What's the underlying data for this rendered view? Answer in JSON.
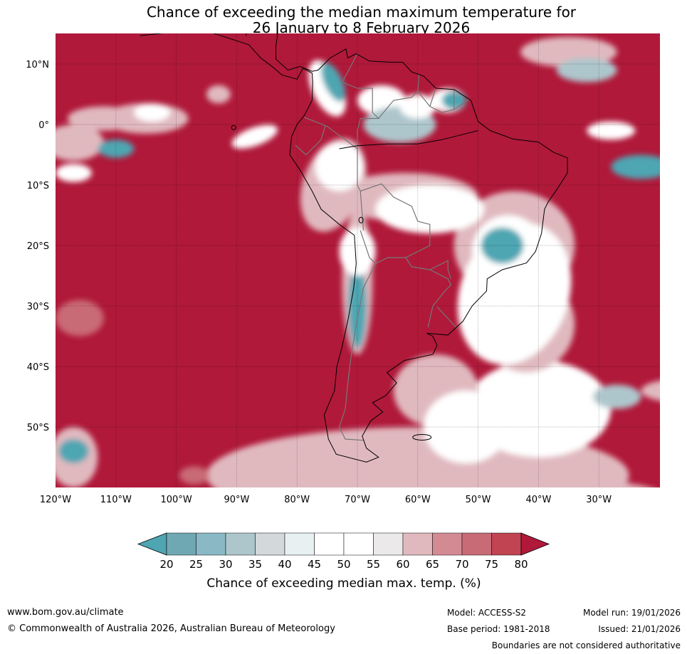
{
  "title_line1": "Chance of exceeding the median maximum temperature for",
  "title_line2": "26 January to 8 February 2026",
  "lat_labels": [
    {
      "text": "10°N",
      "lat": 10
    },
    {
      "text": "0°",
      "lat": 0
    },
    {
      "text": "10°S",
      "lat": -10
    },
    {
      "text": "20°S",
      "lat": -20
    },
    {
      "text": "30°S",
      "lat": -30
    },
    {
      "text": "40°S",
      "lat": -40
    },
    {
      "text": "50°S",
      "lat": -50
    }
  ],
  "lon_labels": [
    {
      "text": "120°W",
      "lon": -120
    },
    {
      "text": "110°W",
      "lon": -110
    },
    {
      "text": "100°W",
      "lon": -100
    },
    {
      "text": "90°W",
      "lon": -90
    },
    {
      "text": "80°W",
      "lon": -80
    },
    {
      "text": "70°W",
      "lon": -70
    },
    {
      "text": "60°W",
      "lon": -60
    },
    {
      "text": "50°W",
      "lon": -50
    },
    {
      "text": "40°W",
      "lon": -40
    },
    {
      "text": "30°W",
      "lon": -30
    }
  ],
  "colorbar": {
    "ticks": [
      "20",
      "25",
      "30",
      "35",
      "40",
      "45",
      "50",
      "55",
      "60",
      "65",
      "70",
      "75",
      "80"
    ],
    "colors": [
      "#6fa8b3",
      "#8ab9c5",
      "#adc6cc",
      "#d3d9db",
      "#e9f0f2",
      "#ffffff",
      "#ffffff",
      "#ebe9ea",
      "#e0b9bf",
      "#d48a93",
      "#c96b77",
      "#c04452"
    ],
    "under_color": "#4ea6b2",
    "over_color": "#b0193a",
    "label": "Chance of exceeding median max. temp. (%)"
  },
  "colors": {
    "background": "#b0193a",
    "warm_high": "#b0193a",
    "warm_mid": "#c96b77",
    "warm_low": "#e0b9bf",
    "neutral": "#ffffff",
    "cool_low": "#adc6cc",
    "cool_high": "#4ea6b2",
    "coast": "#000000",
    "border": "#777777"
  },
  "footer": {
    "website": "www.bom.gov.au/climate",
    "copyright": "© Commonwealth of Australia 2026, Australian Bureau of Meteorology",
    "model": "Model: ACCESS-S2",
    "base_period": "Base period: 1981-2018",
    "model_run": "Model run: 19/01/2026",
    "issued": "Issued: 21/01/2026",
    "note": "Boundaries are not considered authoritative"
  }
}
